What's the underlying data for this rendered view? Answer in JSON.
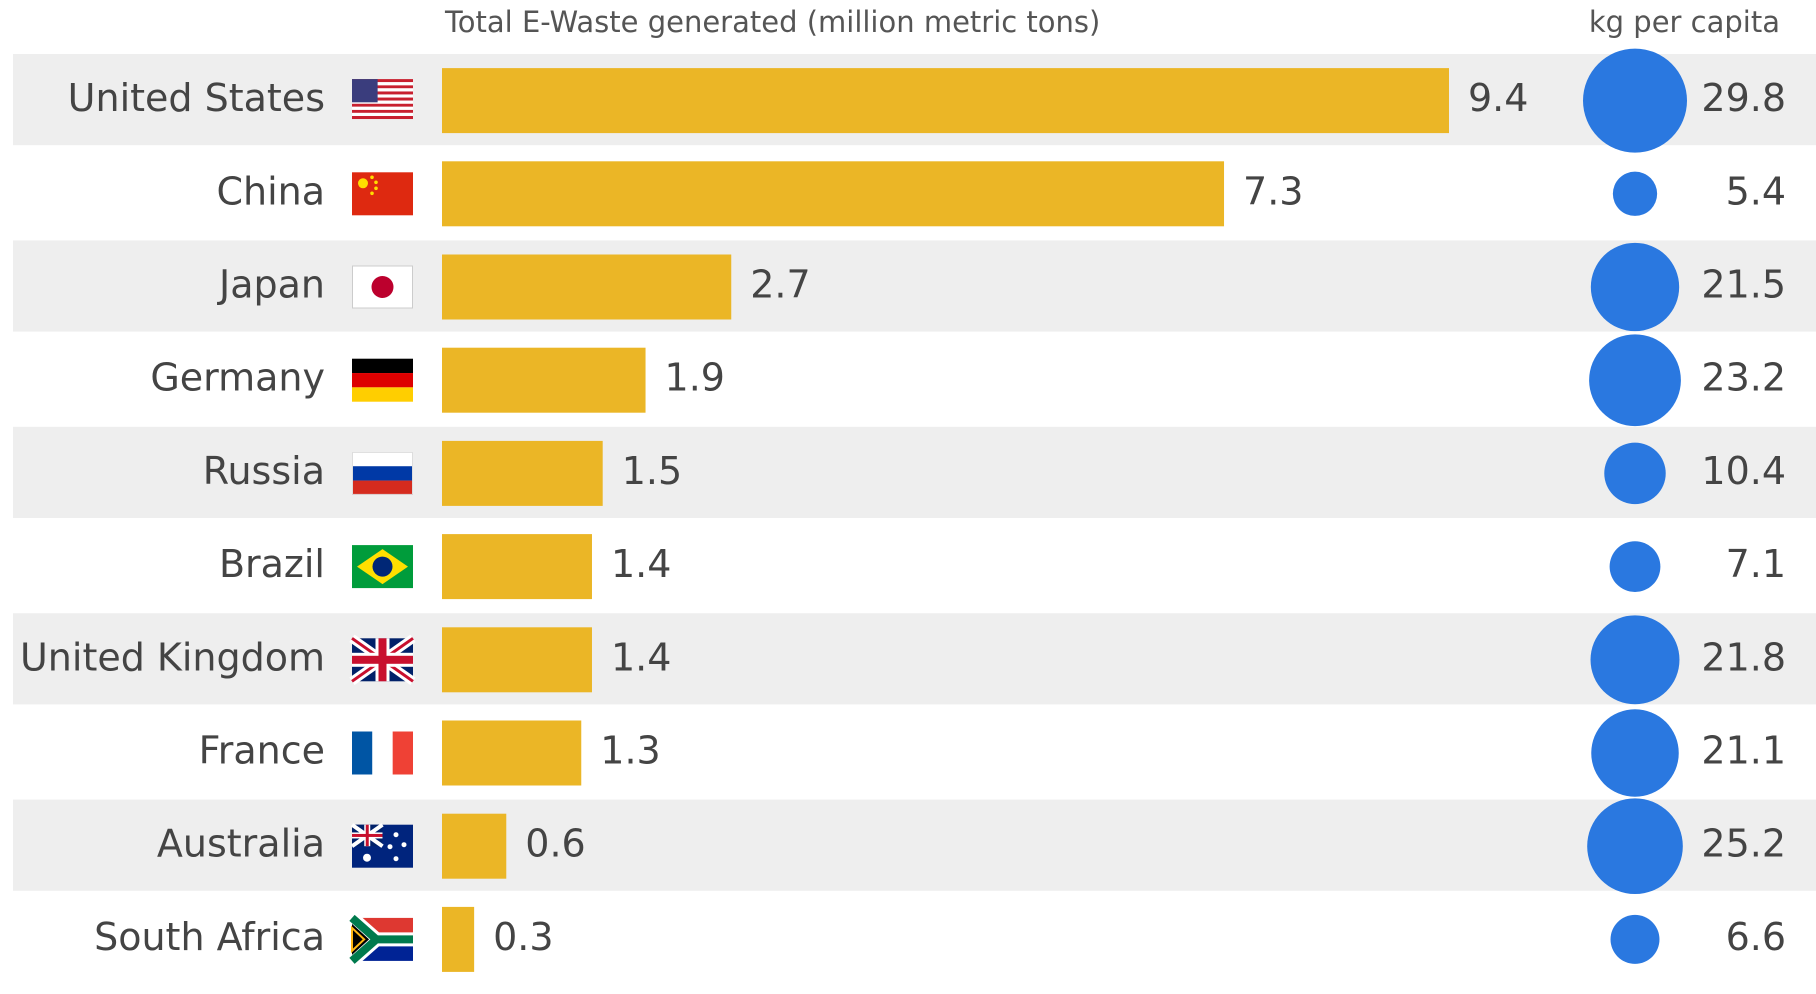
{
  "chart_data": {
    "type": "bar",
    "categories": [
      "United States",
      "China",
      "Japan",
      "Germany",
      "Russia",
      "Brazil",
      "United Kingdom",
      "France",
      "Australia",
      "South Africa"
    ],
    "series": [
      {
        "name": "Total E-Waste generated (million metric tons)",
        "color": "#ebb626",
        "values": [
          9.4,
          7.3,
          2.7,
          1.9,
          1.5,
          1.4,
          1.4,
          1.3,
          0.6,
          0.3
        ]
      },
      {
        "name": "kg per capita",
        "color": "#2a78e0",
        "values": [
          29.8,
          5.4,
          21.5,
          23.2,
          10.4,
          7.1,
          21.8,
          21.1,
          25.2,
          6.6
        ]
      }
    ]
  }
}
